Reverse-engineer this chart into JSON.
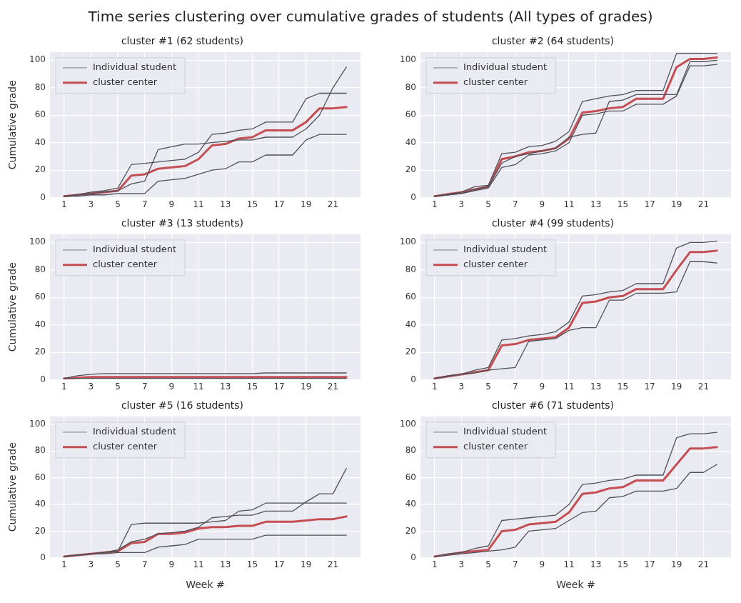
{
  "chart_data": [
    {
      "type": "line",
      "title": "cluster #1 (62 students)",
      "ylabel": "Cumulative grade",
      "annotations": [
        "Time series clustering over cumulative grades of students (All types of grades)"
      ],
      "x": [
        1,
        2,
        3,
        4,
        5,
        6,
        7,
        8,
        9,
        10,
        11,
        12,
        13,
        14,
        15,
        16,
        17,
        18,
        19,
        20,
        21,
        22
      ],
      "xlim": [
        -0.05,
        23.05
      ],
      "xticks": [
        1,
        3,
        5,
        7,
        9,
        11,
        13,
        15,
        17,
        19,
        21
      ],
      "ylim": [
        0,
        106
      ],
      "yticks": [
        0,
        20,
        40,
        60,
        80,
        100
      ],
      "grid": true,
      "legend": "top left",
      "marker": "none",
      "line_style": "solid",
      "series": [
        {
          "name": "Individual student",
          "color": "#505058",
          "values": [
            1,
            2,
            4,
            5,
            7,
            24,
            25,
            26,
            27,
            28,
            33,
            46,
            47,
            49,
            50,
            55,
            55,
            55,
            72,
            76,
            76,
            76
          ]
        },
        {
          "color": "#505058",
          "values": [
            1,
            1,
            2,
            2,
            3,
            3,
            3,
            12,
            13,
            14,
            17,
            20,
            21,
            26,
            26,
            31,
            31,
            31,
            42,
            46,
            46,
            46
          ]
        },
        {
          "color": "#505058",
          "values": [
            1,
            2,
            3,
            4,
            5,
            10,
            12,
            35,
            37,
            39,
            39,
            40,
            41,
            42,
            42,
            44,
            44,
            44,
            50,
            60,
            80,
            95
          ]
        },
        {
          "name": "cluster center",
          "color": "#c44e52",
          "values": [
            1,
            2,
            3,
            4,
            5,
            16,
            17,
            21,
            22,
            23,
            28,
            38,
            39,
            43,
            44,
            49,
            49,
            49,
            55,
            65,
            65,
            66
          ]
        }
      ]
    },
    {
      "type": "line",
      "title": "cluster #2 (64 students)",
      "x": [
        1,
        2,
        3,
        4,
        5,
        6,
        7,
        8,
        9,
        10,
        11,
        12,
        13,
        14,
        15,
        16,
        17,
        18,
        19,
        20,
        21,
        22
      ],
      "xlim": [
        -0.05,
        23.05
      ],
      "xticks": [
        1,
        3,
        5,
        7,
        9,
        11,
        13,
        15,
        17,
        19,
        21
      ],
      "ylim": [
        0,
        106
      ],
      "yticks": [
        0,
        20,
        40,
        60,
        80,
        100
      ],
      "grid": true,
      "legend": "top left",
      "marker": "none",
      "line_style": "solid",
      "series": [
        {
          "name": "Individual student",
          "color": "#505058",
          "values": [
            1,
            2.5,
            4,
            8,
            9,
            32,
            33,
            37,
            38,
            41,
            48,
            70,
            72,
            74,
            75,
            78,
            78,
            78,
            105,
            105,
            105,
            105
          ]
        },
        {
          "color": "#505058",
          "values": [
            1,
            2,
            3,
            5,
            7,
            22,
            24,
            31,
            32,
            34,
            40,
            60,
            61,
            63,
            63,
            68,
            68,
            68,
            74,
            96,
            96,
            97
          ]
        },
        {
          "color": "#505058",
          "values": [
            1,
            2,
            3,
            6,
            8,
            25,
            30,
            32,
            34,
            36,
            44,
            46,
            47,
            70,
            71,
            75,
            75,
            75,
            75,
            99,
            99,
            100
          ]
        },
        {
          "name": "cluster center",
          "color": "#c44e52",
          "values": [
            1,
            2.5,
            4,
            6,
            8,
            28,
            30,
            33,
            34,
            36,
            43,
            62,
            63,
            65,
            66,
            72,
            72,
            72,
            95,
            101,
            101,
            102
          ]
        }
      ]
    },
    {
      "type": "line",
      "title": "cluster #3 (13 students)",
      "ylabel": "Cumulative grade",
      "x": [
        1,
        2,
        3,
        4,
        5,
        6,
        7,
        8,
        9,
        10,
        11,
        12,
        13,
        14,
        15,
        16,
        17,
        18,
        19,
        20,
        21,
        22
      ],
      "xlim": [
        -0.05,
        23.05
      ],
      "xticks": [
        1,
        3,
        5,
        7,
        9,
        11,
        13,
        15,
        17,
        19,
        21
      ],
      "ylim": [
        0,
        106
      ],
      "yticks": [
        0,
        20,
        40,
        60,
        80,
        100
      ],
      "grid": true,
      "legend": "top left",
      "marker": "none",
      "line_style": "solid",
      "series": [
        {
          "name": "Individual student",
          "color": "#505058",
          "values": [
            1,
            3,
            4,
            4.5,
            4.5,
            4.5,
            4.5,
            4.5,
            4.5,
            4.5,
            4.5,
            4.5,
            4.5,
            4.5,
            4.5,
            5,
            5,
            5,
            5,
            5,
            5,
            5
          ]
        },
        {
          "color": "#505058",
          "values": [
            1,
            1,
            1,
            1,
            1,
            1,
            1,
            1,
            1,
            1,
            1,
            1,
            1,
            1,
            1,
            1,
            1,
            1,
            1,
            1,
            1,
            1
          ]
        },
        {
          "name": "cluster center",
          "color": "#c44e52",
          "values": [
            1,
            1.5,
            2,
            2,
            2,
            2,
            2,
            2,
            2,
            2,
            2,
            2,
            2,
            2,
            2,
            2,
            2,
            2,
            2,
            2,
            2,
            2
          ]
        }
      ]
    },
    {
      "type": "line",
      "title": "cluster #4 (99 students)",
      "x": [
        1,
        2,
        3,
        4,
        5,
        6,
        7,
        8,
        9,
        10,
        11,
        12,
        13,
        14,
        15,
        16,
        17,
        18,
        19,
        20,
        21,
        22
      ],
      "xlim": [
        -0.05,
        23.05
      ],
      "xticks": [
        1,
        3,
        5,
        7,
        9,
        11,
        13,
        15,
        17,
        19,
        21
      ],
      "ylim": [
        0,
        106
      ],
      "yticks": [
        0,
        20,
        40,
        60,
        80,
        100
      ],
      "grid": true,
      "legend": "top left",
      "marker": "none",
      "line_style": "solid",
      "series": [
        {
          "name": "Individual student",
          "color": "#505058",
          "values": [
            1,
            3,
            4,
            7,
            9,
            29,
            30,
            32,
            33,
            35,
            42,
            61,
            62,
            64,
            65,
            70,
            70,
            70,
            96,
            100,
            100,
            101
          ]
        },
        {
          "color": "#505058",
          "values": [
            1,
            2.5,
            4,
            5,
            7,
            8,
            9,
            28,
            29,
            30,
            36,
            38,
            38,
            58,
            58,
            63,
            63,
            63,
            64,
            86,
            86,
            85
          ]
        },
        {
          "name": "cluster center",
          "color": "#c44e52",
          "values": [
            1,
            2.5,
            4,
            5.5,
            7,
            25,
            26,
            29,
            30,
            31,
            38,
            56,
            57,
            60,
            61,
            66,
            66,
            66,
            80,
            93,
            93,
            94
          ]
        }
      ]
    },
    {
      "type": "line",
      "title": "cluster #5 (16 students)",
      "ylabel": "Cumulative grade",
      "xlabel": "Week #",
      "x": [
        1,
        2,
        3,
        4,
        5,
        6,
        7,
        8,
        9,
        10,
        11,
        12,
        13,
        14,
        15,
        16,
        17,
        18,
        19,
        20,
        21,
        22
      ],
      "xlim": [
        -0.05,
        23.05
      ],
      "xticks": [
        1,
        3,
        5,
        7,
        9,
        11,
        13,
        15,
        17,
        19,
        21
      ],
      "ylim": [
        0,
        106
      ],
      "yticks": [
        0,
        20,
        40,
        60,
        80,
        100
      ],
      "grid": true,
      "legend": "top left",
      "marker": "none",
      "line_style": "solid",
      "series": [
        {
          "name": "Individual student",
          "color": "#505058",
          "values": [
            1,
            2,
            3,
            4,
            6,
            12,
            14,
            18,
            19,
            20,
            23,
            30,
            31,
            32,
            32,
            35,
            35,
            35,
            42,
            48,
            48,
            67
          ]
        },
        {
          "color": "#505058",
          "values": [
            1,
            2,
            3,
            3,
            4,
            4,
            4,
            8,
            9,
            10,
            14,
            14,
            14,
            14,
            14,
            17,
            17,
            17,
            17,
            17,
            17,
            17
          ]
        },
        {
          "color": "#505058",
          "values": [
            1,
            2,
            3,
            4,
            5,
            25,
            26,
            26,
            26,
            26,
            26,
            27,
            28,
            35,
            36,
            41,
            41,
            41,
            41,
            41,
            41,
            41
          ]
        },
        {
          "name": "cluster center",
          "color": "#c44e52",
          "values": [
            1,
            2,
            3,
            4,
            5,
            11,
            12,
            18,
            18,
            19,
            22,
            23,
            23,
            24,
            24,
            27,
            27,
            27,
            28,
            29,
            29,
            31
          ]
        }
      ]
    },
    {
      "type": "line",
      "title": "cluster #6 (71 students)",
      "xlabel": "Week #",
      "x": [
        1,
        2,
        3,
        4,
        5,
        6,
        7,
        8,
        9,
        10,
        11,
        12,
        13,
        14,
        15,
        16,
        17,
        18,
        19,
        20,
        21,
        22
      ],
      "xlim": [
        -0.05,
        23.05
      ],
      "xticks": [
        1,
        3,
        5,
        7,
        9,
        11,
        13,
        15,
        17,
        19,
        21
      ],
      "ylim": [
        0,
        106
      ],
      "yticks": [
        0,
        20,
        40,
        60,
        80,
        100
      ],
      "grid": true,
      "legend": "top left",
      "marker": "none",
      "line_style": "solid",
      "series": [
        {
          "name": "Individual student",
          "color": "#505058",
          "values": [
            1,
            3,
            4,
            7,
            9,
            28,
            29,
            30,
            31,
            32,
            40,
            55,
            56,
            58,
            59,
            62,
            62,
            62,
            90,
            93,
            93,
            94
          ]
        },
        {
          "color": "#505058",
          "values": [
            1,
            2,
            3,
            4,
            5,
            6,
            8,
            20,
            21,
            22,
            28,
            34,
            35,
            45,
            46,
            50,
            50,
            50,
            52,
            64,
            64,
            70
          ]
        },
        {
          "name": "cluster center",
          "color": "#c44e52",
          "values": [
            1,
            2.5,
            4,
            5,
            6,
            20,
            21,
            25,
            26,
            27,
            34,
            48,
            49,
            52,
            53,
            58,
            58,
            58,
            70,
            82,
            82,
            83
          ]
        }
      ]
    }
  ]
}
